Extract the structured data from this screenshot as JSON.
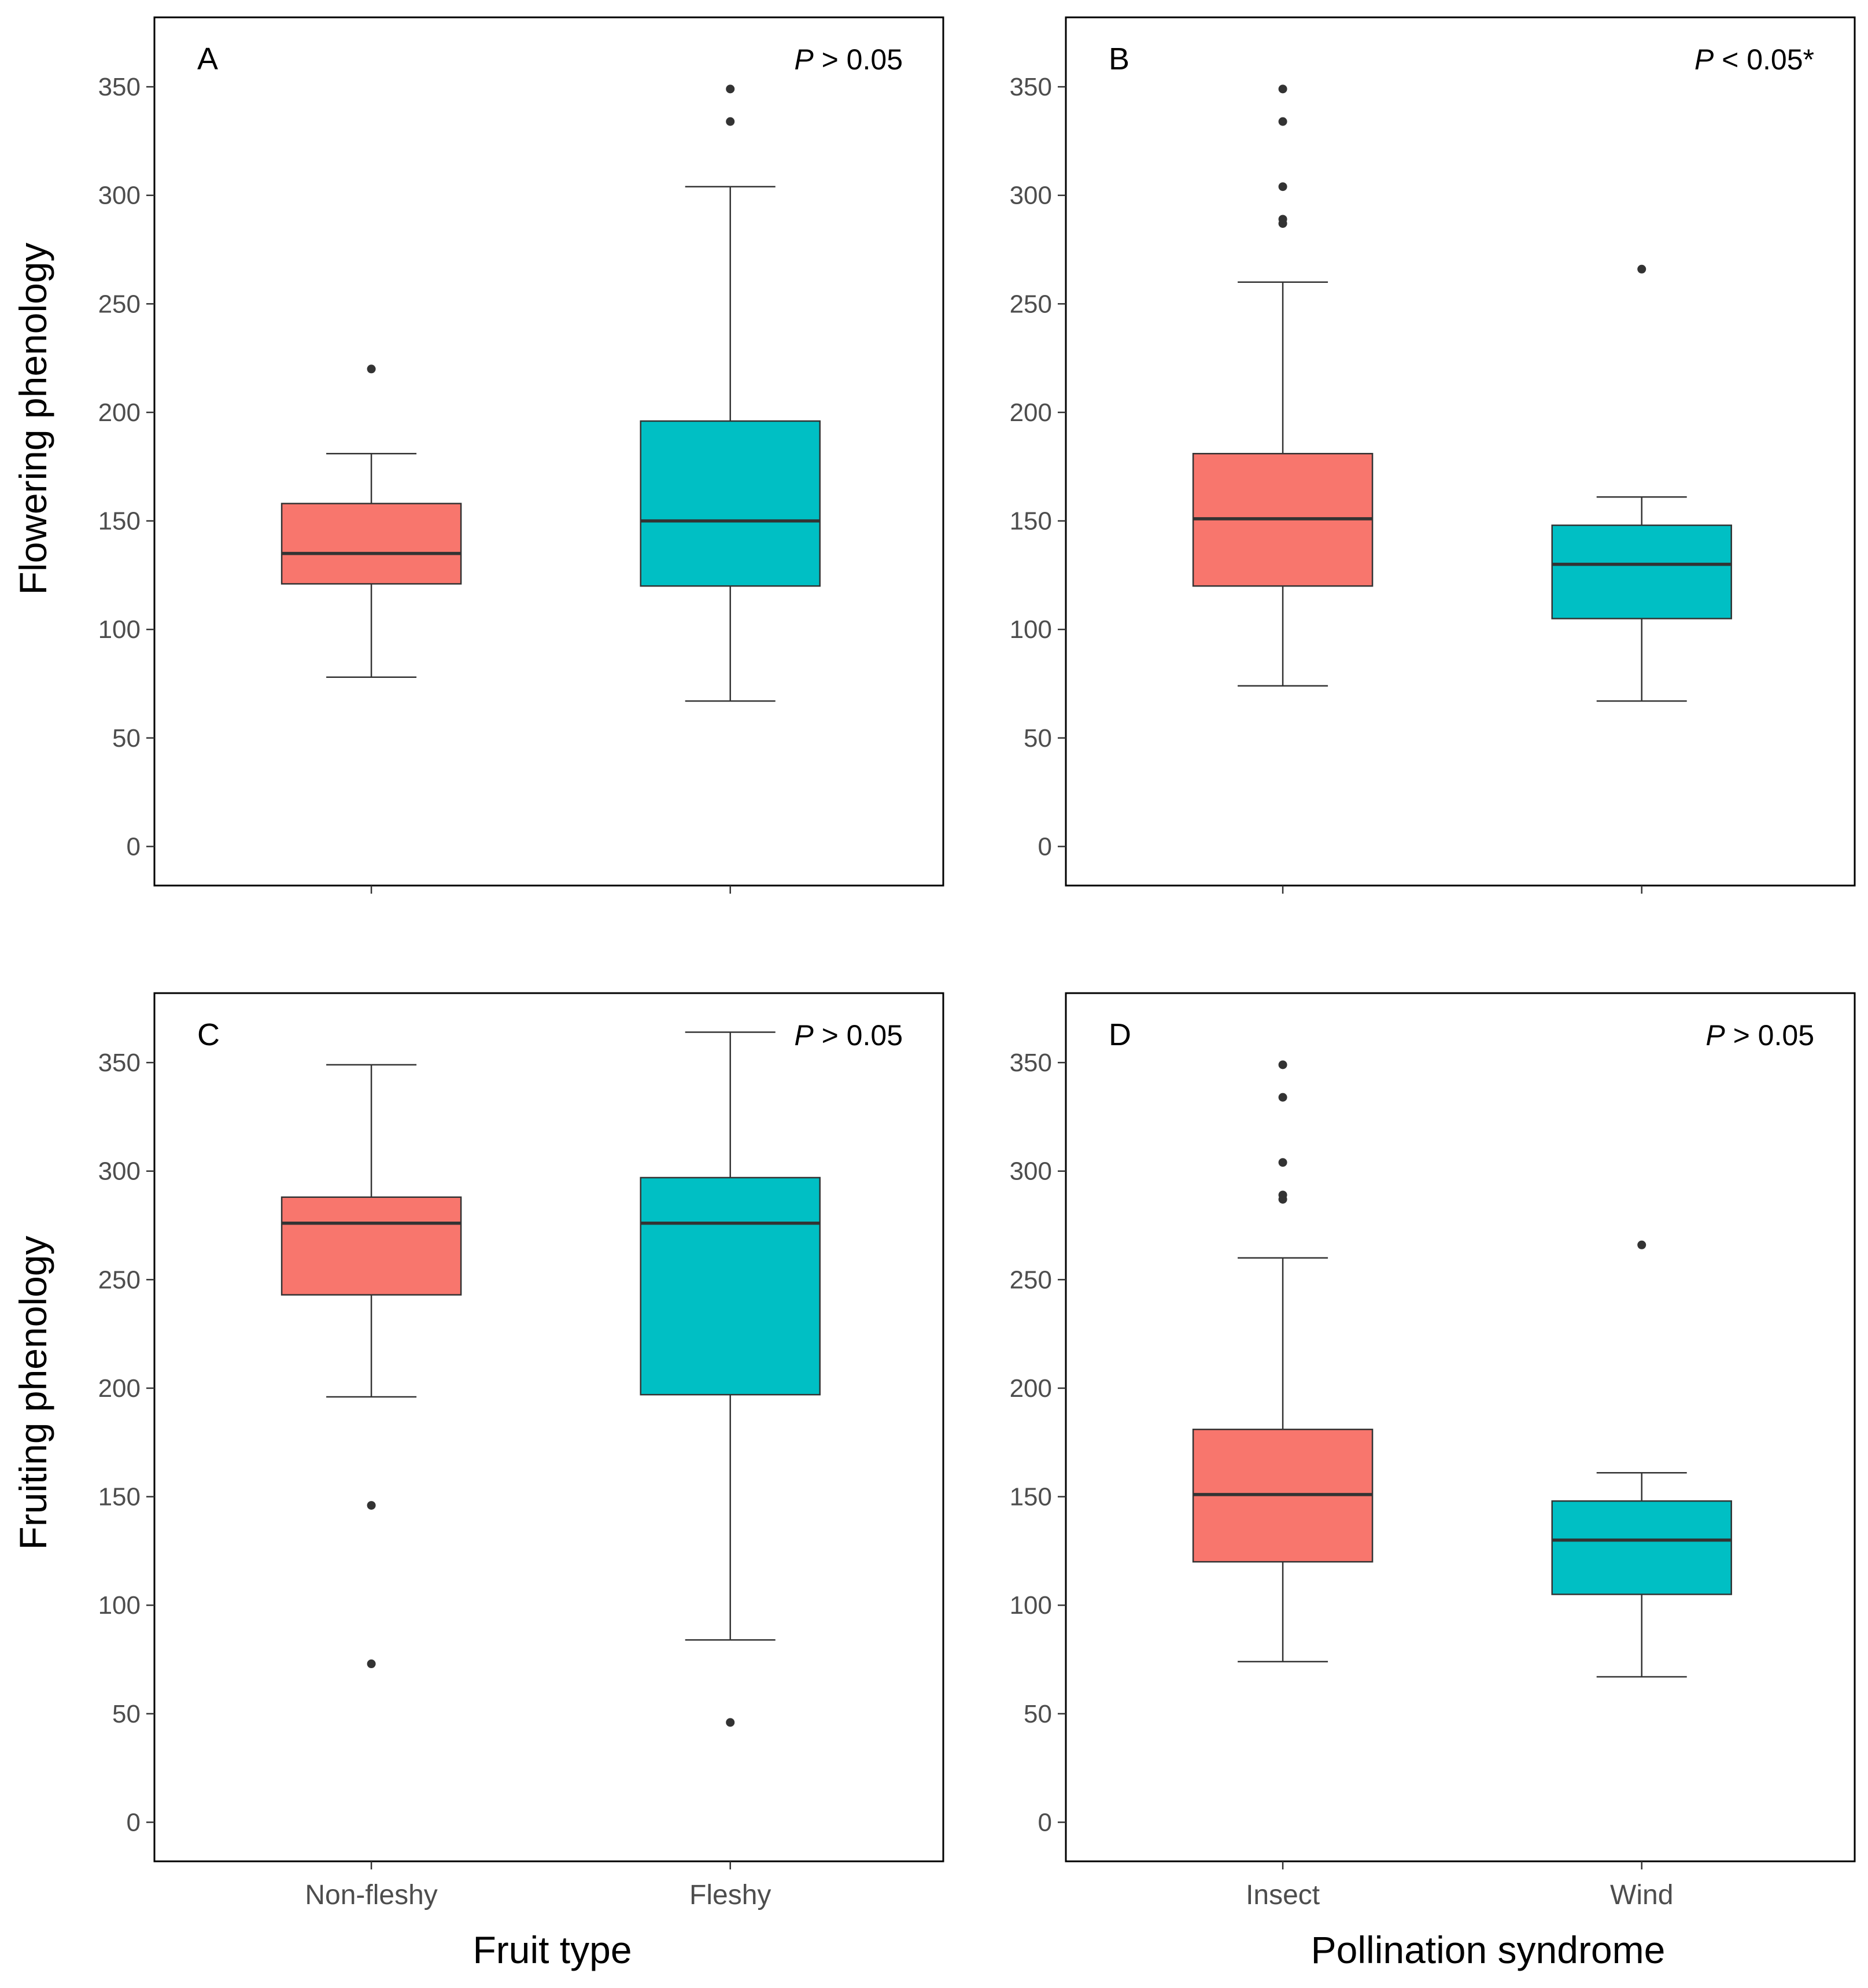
{
  "figure": {
    "ylabels": [
      "Flowering phenology",
      "Fruiting phenology"
    ],
    "xlabels": [
      "Fruit type",
      "Pollination syndrome"
    ]
  },
  "colors": {
    "group1_fill": "#F8766D",
    "group2_fill": "#00BFC4",
    "median_line": "#333333",
    "box_outline": "#333333",
    "frame": "#000000"
  },
  "chart_data": [
    {
      "type": "box",
      "panel": "A",
      "pvalue": {
        "p": "P",
        "rest": " > 0.05"
      },
      "ylabel": "Flowering phenology",
      "xlabel": "",
      "ylim": [
        -18,
        382
      ],
      "yticks": [
        0,
        50,
        100,
        150,
        200,
        250,
        300,
        350
      ],
      "categories": [
        "Non-fleshy",
        "Fleshy"
      ],
      "show_xtick_labels": false,
      "groups": [
        {
          "name": "Non-fleshy",
          "whisker_low": 78,
          "q1": 121,
          "median": 135,
          "q3": 158,
          "whisker_high": 181,
          "outliers": [
            220
          ]
        },
        {
          "name": "Fleshy",
          "whisker_low": 67,
          "q1": 120,
          "median": 150,
          "q3": 196,
          "whisker_high": 304,
          "outliers": [
            334,
            349
          ]
        }
      ]
    },
    {
      "type": "box",
      "panel": "B",
      "pvalue": {
        "p": "P",
        "rest": " < 0.05*"
      },
      "ylabel": "",
      "xlabel": "",
      "ylim": [
        -18,
        382
      ],
      "yticks": [
        0,
        50,
        100,
        150,
        200,
        250,
        300,
        350
      ],
      "categories": [
        "Insect",
        "Wind"
      ],
      "show_xtick_labels": false,
      "groups": [
        {
          "name": "Insect",
          "whisker_low": 74,
          "q1": 120,
          "median": 151,
          "q3": 181,
          "whisker_high": 260,
          "outliers": [
            287,
            289,
            304,
            334,
            349
          ]
        },
        {
          "name": "Wind",
          "whisker_low": 67,
          "q1": 105,
          "median": 130,
          "q3": 148,
          "whisker_high": 161,
          "outliers": [
            266
          ]
        }
      ]
    },
    {
      "type": "box",
      "panel": "C",
      "pvalue": {
        "p": "P",
        "rest": " > 0.05"
      },
      "ylabel": "Fruiting phenology",
      "xlabel": "Fruit type",
      "ylim": [
        -18,
        382
      ],
      "yticks": [
        0,
        50,
        100,
        150,
        200,
        250,
        300,
        350
      ],
      "categories": [
        "Non-fleshy",
        "Fleshy"
      ],
      "show_xtick_labels": true,
      "groups": [
        {
          "name": "Non-fleshy",
          "whisker_low": 196,
          "q1": 243,
          "median": 276,
          "q3": 288,
          "whisker_high": 349,
          "outliers": [
            73,
            146
          ]
        },
        {
          "name": "Fleshy",
          "whisker_low": 84,
          "q1": 197,
          "median": 276,
          "q3": 297,
          "whisker_high": 364,
          "outliers": [
            46
          ]
        }
      ]
    },
    {
      "type": "box",
      "panel": "D",
      "pvalue": {
        "p": "P",
        "rest": " > 0.05"
      },
      "ylabel": "",
      "xlabel": "Pollination syndrome",
      "ylim": [
        -18,
        382
      ],
      "yticks": [
        0,
        50,
        100,
        150,
        200,
        250,
        300,
        350
      ],
      "categories": [
        "Insect",
        "Wind"
      ],
      "show_xtick_labels": true,
      "groups": [
        {
          "name": "Insect",
          "whisker_low": 74,
          "q1": 120,
          "median": 151,
          "q3": 181,
          "whisker_high": 260,
          "outliers": [
            287,
            289,
            304,
            334,
            349
          ]
        },
        {
          "name": "Wind",
          "whisker_low": 67,
          "q1": 105,
          "median": 130,
          "q3": 148,
          "whisker_high": 161,
          "outliers": [
            266
          ]
        }
      ]
    }
  ]
}
